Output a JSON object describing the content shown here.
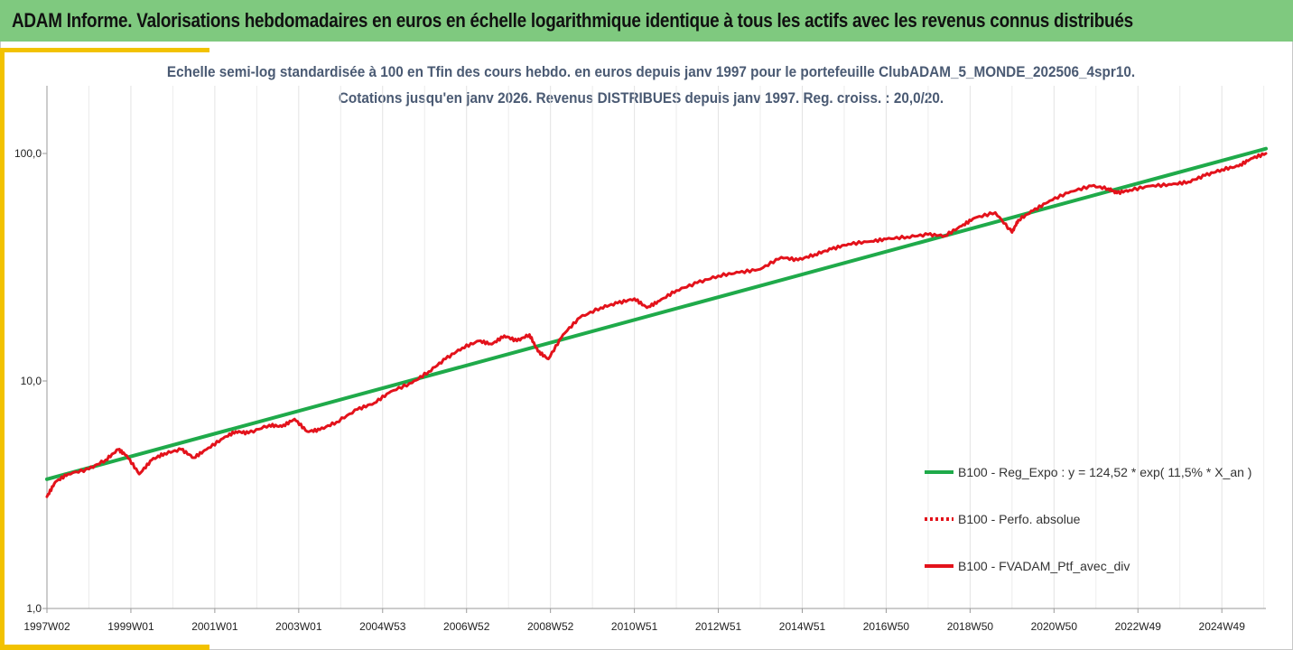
{
  "header": {
    "title": "ADAM Informe. Valorisations hebdomadaires en euros en échelle logarithmique identique à tous les actifs avec les revenus connus distribués",
    "background": "#7fc97f",
    "accent": "#f2c200"
  },
  "chart_data": {
    "type": "line",
    "title_line1": "Echelle semi-log standardisée  à 100 en Tfin des cours hebdo.  en euros depuis janv 1997 pour le portefeuille ClubADAM_5_MONDE_202506_4spr10.",
    "title_line2": "Cotations  jusqu'en janv 2026. Revenus DISTRIBUES depuis janv 1997. Reg. croiss. : 20,0/20.",
    "y_scale": "log",
    "ylim": [
      1,
      200
    ],
    "y_ticks": [
      1,
      10,
      100
    ],
    "y_tick_labels": [
      "1,0",
      "10,0",
      "100,0"
    ],
    "x_tick_labels": [
      "1997W02",
      "1999W01",
      "2001W01",
      "2003W01",
      "2004W53",
      "2006W52",
      "2008W52",
      "2010W51",
      "2012W51",
      "2014W51",
      "2016W50",
      "2018W50",
      "2020W50",
      "2022W49",
      "2024W49"
    ],
    "x_tick_years": [
      1997.0,
      1999.0,
      2001.0,
      2003.0,
      2005.0,
      2007.0,
      2009.0,
      2011.0,
      2013.0,
      2015.0,
      2017.0,
      2019.0,
      2021.0,
      2023.0,
      2025.0
    ],
    "x_range": [
      1997.0,
      2026.05
    ],
    "grid": "vertical",
    "legend_position": "bottom-right",
    "series": [
      {
        "name": "B100 - Reg_Expo : y = 124,52 * exp( 11,5% *  X_an )",
        "color": "#1faa4a",
        "style": "solid",
        "x": [
          1997.0,
          2026.05
        ],
        "values": [
          3.7,
          105.0
        ]
      },
      {
        "name": "B100 - Perfo. absolue",
        "color": "#e3121b",
        "style": "dotted",
        "x": [],
        "values": []
      },
      {
        "name": "B100 - FVADAM_Ptf_avec_div",
        "color": "#e3121b",
        "style": "solid",
        "x": [
          1997.0,
          1997.2,
          1997.5,
          1998.0,
          1998.4,
          1998.7,
          1998.9,
          1999.2,
          1999.5,
          1999.8,
          2000.2,
          2000.5,
          2000.8,
          2001.2,
          2001.5,
          2001.8,
          2002.3,
          2002.6,
          2002.9,
          2003.2,
          2003.5,
          2003.9,
          2004.4,
          2004.8,
          2005.2,
          2005.7,
          2006.1,
          2006.5,
          2006.9,
          2007.3,
          2007.6,
          2007.9,
          2008.2,
          2008.5,
          2008.7,
          2008.95,
          2009.3,
          2009.7,
          2010.2,
          2010.6,
          2011.0,
          2011.3,
          2011.6,
          2012.0,
          2012.5,
          2013.0,
          2013.5,
          2014.0,
          2014.5,
          2014.9,
          2015.3,
          2015.7,
          2016.1,
          2016.6,
          2017.0,
          2017.5,
          2018.0,
          2018.4,
          2018.8,
          2019.1,
          2019.6,
          2020.0,
          2020.15,
          2020.5,
          2020.9,
          2021.4,
          2021.9,
          2022.3,
          2022.5,
          2022.8,
          2023.3,
          2023.8,
          2024.2,
          2024.6,
          2025.0,
          2025.4,
          2025.7,
          2026.05
        ],
        "values": [
          3.1,
          3.6,
          3.9,
          4.1,
          4.5,
          5.0,
          4.7,
          3.9,
          4.5,
          4.8,
          5.0,
          4.6,
          5.0,
          5.6,
          6.0,
          5.9,
          6.4,
          6.3,
          6.8,
          6.0,
          6.1,
          6.6,
          7.5,
          8.0,
          9.0,
          9.8,
          11.0,
          12.5,
          14.0,
          15.0,
          14.5,
          15.8,
          15.0,
          16.0,
          13.5,
          12.5,
          16.0,
          19.0,
          21.0,
          22.0,
          23.0,
          21.0,
          22.5,
          25.0,
          27.0,
          29.0,
          30.0,
          31.0,
          35.0,
          34.0,
          36.0,
          38.0,
          40.0,
          41.0,
          42.0,
          43.0,
          44.0,
          43.5,
          48.0,
          52.0,
          55.0,
          45.0,
          51.0,
          56.0,
          62.0,
          68.0,
          72.0,
          70.0,
          67.0,
          69.0,
          72.0,
          73.0,
          75.0,
          80.0,
          85.0,
          88.0,
          95.0,
          100.0
        ]
      }
    ]
  }
}
